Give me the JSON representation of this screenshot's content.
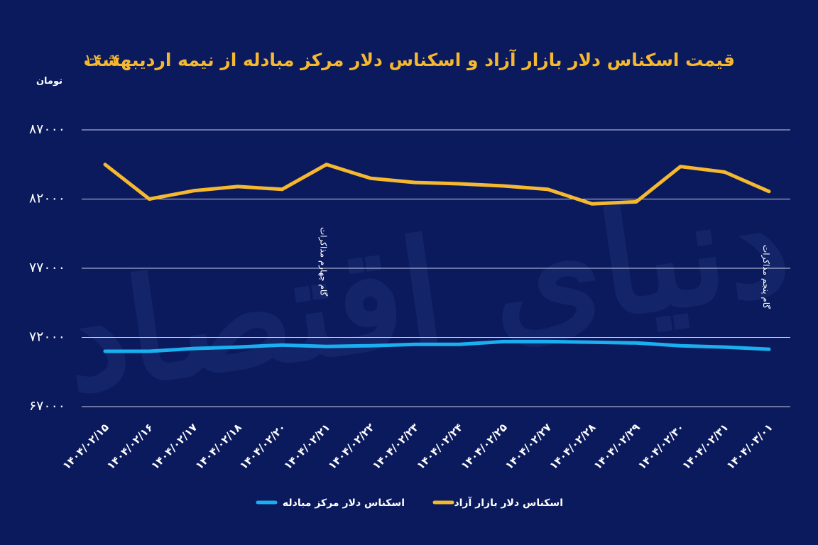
{
  "watermark": "دنیای اقتصاد",
  "chart_data": {
    "type": "line",
    "title": "قیمت اسکناس دلار بازار آزاد و اسکناس دلار مرکز مبادله از نیمه اردیبهشت",
    "title_year": "۱۴۰۴",
    "ylabel": "تومان",
    "ylim": [
      67000,
      87000
    ],
    "yticks": [
      {
        "value": 87000,
        "label": "۸۷۰۰۰"
      },
      {
        "value": 82000,
        "label": "۸۲۰۰۰"
      },
      {
        "value": 77000,
        "label": "۷۷۰۰۰"
      },
      {
        "value": 72000,
        "label": "۷۲۰۰۰"
      },
      {
        "value": 67000,
        "label": "۶۷۰۰۰"
      }
    ],
    "grid": true,
    "categories": [
      "۱۴۰۴/۰۲/۱۵",
      "۱۴۰۴/۰۲/۱۶",
      "۱۴۰۴/۰۲/۱۷",
      "۱۴۰۴/۰۲/۱۸",
      "۱۴۰۴/۰۲/۲۰",
      "۱۴۰۴/۰۲/۲۱",
      "۱۴۰۴/۰۲/۲۲",
      "۱۴۰۴/۰۲/۲۳",
      "۱۴۰۴/۰۲/۲۴",
      "۱۴۰۴/۰۲/۲۵",
      "۱۴۰۴/۰۲/۲۷",
      "۱۴۰۴/۰۲/۲۸",
      "۱۴۰۴/۰۲/۲۹",
      "۱۴۰۴/۰۲/۳۰",
      "۱۴۰۴/۰۲/۳۱",
      "۱۴۰۴/۰۳/۰۱"
    ],
    "series": [
      {
        "name": "اسکناس دلار بازار آزاد",
        "color": "#f5b82e",
        "values": [
          84500,
          82000,
          82600,
          82900,
          82700,
          84500,
          83500,
          83200,
          83100,
          82950,
          82700,
          81650,
          81800,
          84350,
          83950,
          82550
        ]
      },
      {
        "name": "اسکناس دلار مرکز مبادله",
        "color": "#1ab0f0",
        "values": [
          71000,
          71000,
          71200,
          71300,
          71450,
          71350,
          71400,
          71500,
          71500,
          71700,
          71700,
          71650,
          71600,
          71400,
          71300,
          71150
        ]
      }
    ],
    "annotations": [
      {
        "text": "گام چهارم مذاکرات",
        "category_index": 5
      },
      {
        "text": "گام پنجم مذاکرات",
        "category_index": 15
      }
    ],
    "legend_position": "bottom-center"
  }
}
